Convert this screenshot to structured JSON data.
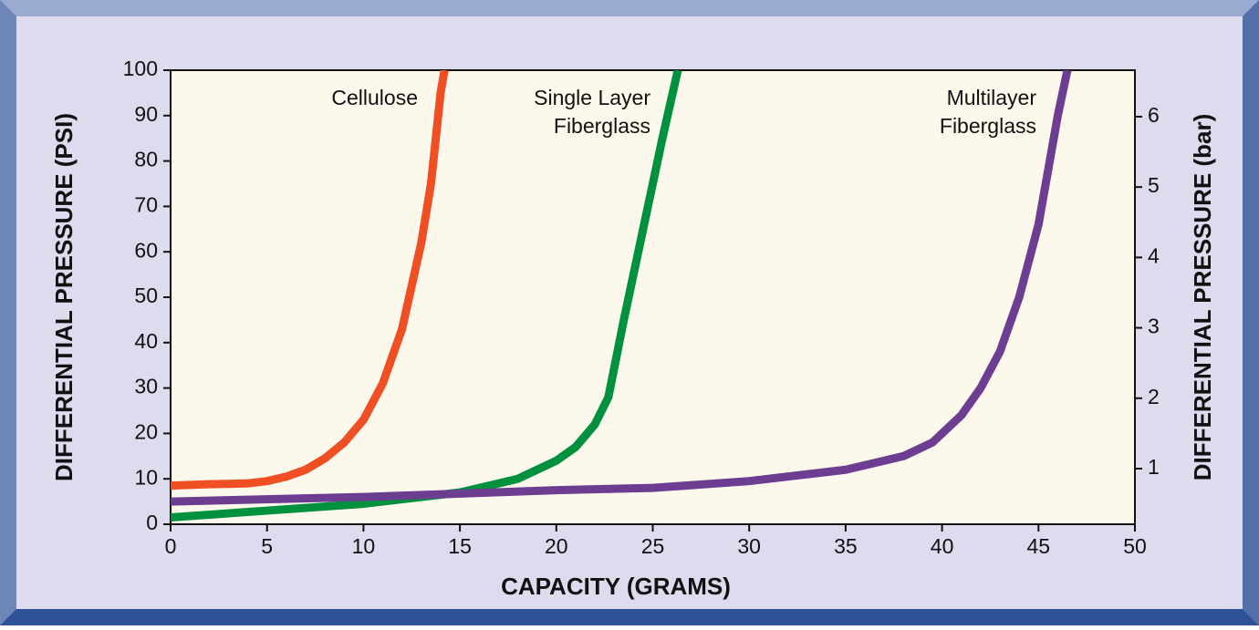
{
  "chart_data": {
    "type": "line",
    "x_label": "CAPACITY (GRAMS)",
    "y_label": "DIFFERENTIAL PRESSURE (PSI)",
    "y2_label": "DIFFERENTIAL PRESSURE (bar)",
    "xlim": [
      0,
      50
    ],
    "xticks": [
      0,
      5,
      10,
      15,
      20,
      25,
      30,
      35,
      40,
      45,
      50
    ],
    "ylim": [
      0,
      100
    ],
    "yticks": [
      0,
      10,
      20,
      30,
      40,
      50,
      60,
      70,
      80,
      90,
      100
    ],
    "y2lim": [
      0.21,
      6.66
    ],
    "y2ticks": [
      1,
      2,
      3,
      4,
      5,
      6
    ],
    "series": [
      {
        "name": "Cellulose",
        "color": "#f04e23",
        "x": [
          0,
          2,
          4,
          5,
          6,
          7,
          8,
          9,
          10,
          11,
          12,
          13,
          13.5,
          14,
          14.2
        ],
        "values": [
          8.5,
          8.8,
          9,
          9.5,
          10.5,
          12,
          14.5,
          18,
          23,
          31,
          43,
          62,
          75,
          95,
          100
        ]
      },
      {
        "name": "Single Layer\nFiberglass",
        "color": "#00913f",
        "x": [
          0,
          5,
          10,
          15,
          18,
          20,
          21,
          22,
          22.7,
          23.5,
          24.5,
          25.5,
          26.3
        ],
        "values": [
          1.5,
          3,
          4.5,
          7,
          10,
          14,
          17,
          22,
          28,
          45,
          65,
          85,
          100
        ]
      },
      {
        "name": "Multilayer\nFiberglass",
        "color": "#6c3d91",
        "x": [
          0,
          10,
          20,
          25,
          30,
          35,
          38,
          39.5,
          41,
          42,
          43,
          44,
          45,
          45.5,
          46,
          46.5
        ],
        "values": [
          5,
          6,
          7.5,
          8,
          9.5,
          12,
          15,
          18,
          24,
          30,
          38,
          50,
          66,
          78,
          90,
          100
        ]
      }
    ]
  }
}
